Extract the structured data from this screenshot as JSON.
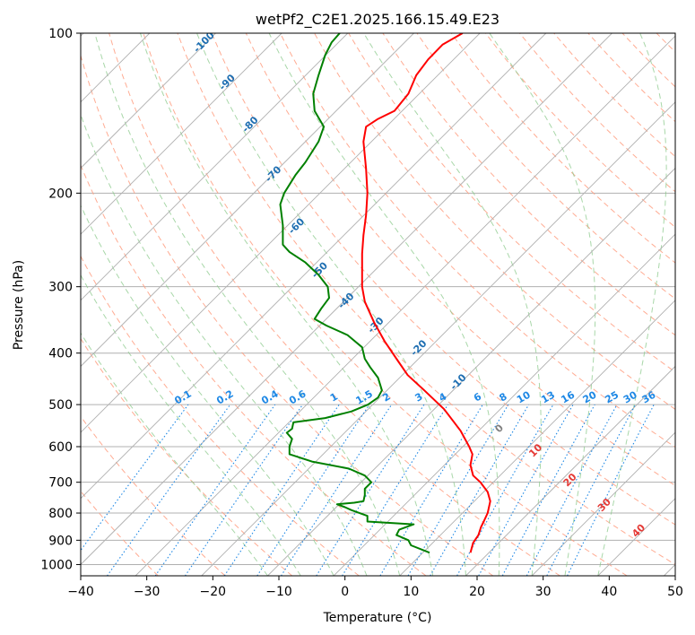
{
  "chart_data": {
    "type": "line",
    "title": "wetPf2_C2E1.2025.166.15.49.E23",
    "xlabel": "Temperature (°C)",
    "ylabel": "Pressure (hPa)",
    "xlim": [
      -40,
      50
    ],
    "ylim": [
      1050,
      100
    ],
    "y_scale": "log",
    "grid": true,
    "x_ticks": [
      -40,
      -30,
      -20,
      -10,
      0,
      10,
      20,
      30,
      40,
      50
    ],
    "y_ticks": [
      100,
      200,
      300,
      400,
      500,
      600,
      700,
      800,
      900,
      1000
    ],
    "series": [
      {
        "name": "",
        "color": "#ff0000",
        "points": [
          [
            19.0,
            950
          ],
          [
            19.4,
            910
          ],
          [
            20.2,
            880
          ],
          [
            20.6,
            850
          ],
          [
            21.0,
            830
          ],
          [
            21.6,
            800
          ],
          [
            22.0,
            760
          ],
          [
            21.6,
            730
          ],
          [
            20.5,
            700
          ],
          [
            19.4,
            680
          ],
          [
            19.0,
            650
          ],
          [
            19.3,
            620
          ],
          [
            18.8,
            600
          ],
          [
            17.5,
            560
          ],
          [
            15.0,
            510
          ],
          [
            12.0,
            470
          ],
          [
            9.5,
            440
          ],
          [
            7.8,
            410
          ],
          [
            6.0,
            380
          ],
          [
            4.4,
            350
          ],
          [
            3.0,
            320
          ],
          [
            2.6,
            300
          ],
          [
            2.6,
            280
          ],
          [
            2.6,
            260
          ],
          [
            2.8,
            240
          ],
          [
            3.2,
            220
          ],
          [
            3.4,
            200
          ],
          [
            3.2,
            180
          ],
          [
            2.8,
            160
          ],
          [
            3.2,
            150
          ],
          [
            5.0,
            145
          ],
          [
            7.5,
            140
          ],
          [
            9.6,
            130
          ],
          [
            10.8,
            120
          ],
          [
            12.6,
            112
          ],
          [
            14.8,
            105
          ],
          [
            17.8,
            100
          ]
        ]
      },
      {
        "name": "",
        "color": "#008000",
        "points": [
          [
            12.8,
            950
          ],
          [
            10.0,
            920
          ],
          [
            9.6,
            900
          ],
          [
            7.8,
            880
          ],
          [
            8.2,
            860
          ],
          [
            10.4,
            840
          ],
          [
            3.4,
            830
          ],
          [
            3.4,
            810
          ],
          [
            1.0,
            790
          ],
          [
            0.0,
            780
          ],
          [
            -1.2,
            770
          ],
          [
            1.4,
            765
          ],
          [
            2.8,
            760
          ],
          [
            3.0,
            740
          ],
          [
            3.0,
            720
          ],
          [
            4.0,
            700
          ],
          [
            3.0,
            680
          ],
          [
            0.6,
            660
          ],
          [
            -5.0,
            640
          ],
          [
            -8.4,
            620
          ],
          [
            -8.4,
            600
          ],
          [
            -8.0,
            580
          ],
          [
            -8.8,
            565
          ],
          [
            -8.0,
            555
          ],
          [
            -7.8,
            540
          ],
          [
            -3.0,
            530
          ],
          [
            1.0,
            515
          ],
          [
            3.5,
            500
          ],
          [
            5.0,
            485
          ],
          [
            5.6,
            470
          ],
          [
            5.0,
            445
          ],
          [
            3.8,
            425
          ],
          [
            3.0,
            410
          ],
          [
            2.6,
            390
          ],
          [
            0.4,
            370
          ],
          [
            -2.8,
            355
          ],
          [
            -4.6,
            345
          ],
          [
            -3.6,
            330
          ],
          [
            -2.4,
            315
          ],
          [
            -2.6,
            300
          ],
          [
            -4.0,
            285
          ],
          [
            -6.0,
            270
          ],
          [
            -8.4,
            258
          ],
          [
            -9.4,
            250
          ],
          [
            -9.4,
            230
          ],
          [
            -9.8,
            210
          ],
          [
            -9.2,
            200
          ],
          [
            -7.5,
            185
          ],
          [
            -6.0,
            175
          ],
          [
            -4.0,
            160
          ],
          [
            -3.2,
            150
          ],
          [
            -4.6,
            140
          ],
          [
            -4.8,
            130
          ],
          [
            -4.0,
            120
          ],
          [
            -3.0,
            110
          ],
          [
            -2.0,
            104
          ],
          [
            -0.8,
            100
          ]
        ]
      }
    ],
    "dry_adiabat_labels": [
      "-100",
      "-90",
      "-80",
      "-70",
      "-60",
      "-50",
      "-40",
      "-30",
      "-20",
      "-10",
      "0",
      "10",
      "20",
      "30",
      "40"
    ],
    "mixing_ratio_labels": [
      "0.1",
      "0.2",
      "0.4",
      "0.6",
      "1",
      "1.5",
      "2",
      "3",
      "4",
      "6",
      "8",
      "10",
      "13",
      "16",
      "20",
      "25",
      "30",
      "36"
    ],
    "colors": {
      "isotherm": "#b0b0b0",
      "dry_adiabat": "#ff9e80",
      "moist_adiabat": "#8bc98b",
      "mixing_ratio": "#1e88e5",
      "dry_label_cool": "#1f6fb2",
      "dry_label_warm": "#e53935",
      "dry_label_zero": "#808080",
      "mixing_label": "#1e88e5"
    }
  }
}
